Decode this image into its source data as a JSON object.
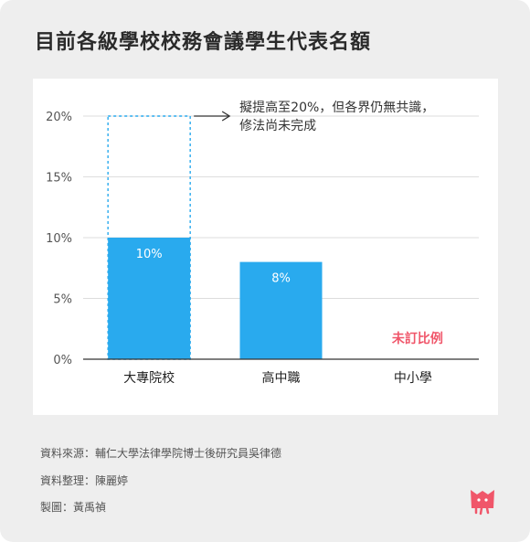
{
  "title": "目前各級學校校務會議學生代表名額",
  "chart_data": {
    "type": "bar",
    "categories": [
      "大專院校",
      "高中職",
      "中小學"
    ],
    "values": [
      10,
      8,
      null
    ],
    "value_labels": [
      "10%",
      "8%",
      ""
    ],
    "missing_label": "未訂比例",
    "target": {
      "category_index": 0,
      "value": 20
    },
    "annotation": [
      "擬提高至20%，但各界仍無共識，",
      "修法尚未完成"
    ],
    "yticks": [
      0,
      5,
      10,
      15,
      20
    ],
    "ytick_labels": [
      "0%",
      "5%",
      "10%",
      "15%",
      "20%"
    ],
    "ylim": [
      0,
      20
    ],
    "grid": true
  },
  "colors": {
    "bar": "#29aaee",
    "bar_label": "#ffffff",
    "missing": "#f0566a",
    "grid": "#dddddd",
    "axis": "#333333",
    "tick_text": "#555555"
  },
  "credits": {
    "source": "資料來源：輔仁大學法律學院博士後研究員吳律德",
    "organizer": "資料整理：陳麗婷",
    "designer": "製圖：黃禹禎"
  },
  "logo_icon": "pink-mascot-icon"
}
